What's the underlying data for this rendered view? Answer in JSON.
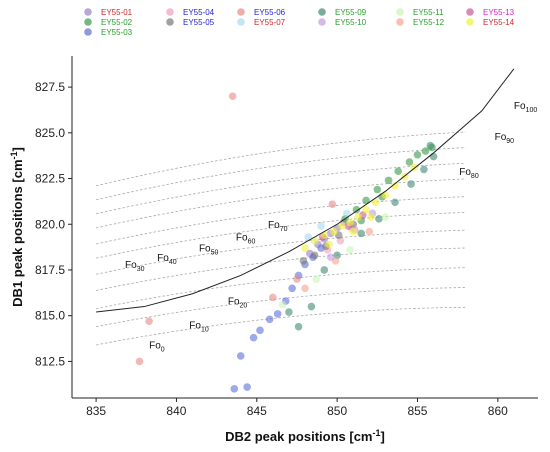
{
  "chart_data": {
    "type": "scatter",
    "xlabel": "DB2 peak positions [cm",
    "xlabel_unit_sup": "-1",
    "xlabel_end": "]",
    "ylabel": "DB1 peak positions [cm",
    "ylabel_unit_sup": "-1",
    "ylabel_end": "]",
    "xlim": [
      833.5,
      862.5
    ],
    "ylim": [
      810.5,
      829.2
    ],
    "xticks": [
      835,
      840,
      845,
      850,
      855,
      860
    ],
    "yticks": [
      812.5,
      815.0,
      817.5,
      820.0,
      822.5,
      825.0,
      827.5
    ],
    "ytick_labels": [
      "812.5",
      "815.0",
      "817.5",
      "820.0",
      "822.5",
      "825.0",
      "827.5"
    ],
    "grid": false,
    "legend_position": "top",
    "series": [
      {
        "name": "EY55-01",
        "color": "#9b7fc8",
        "label_color": "#d62728",
        "points": [
          [
            848.3,
            818.4
          ],
          [
            848.8,
            818.9
          ],
          [
            849.2,
            819.2
          ],
          [
            849.6,
            819.5
          ],
          [
            850.0,
            819.8
          ],
          [
            850.4,
            820.1
          ]
        ]
      },
      {
        "name": "EY55-02",
        "color": "#3a9a4a",
        "label_color": "#2ca02c",
        "points": [
          [
            850.5,
            820.3
          ],
          [
            851.2,
            820.8
          ],
          [
            851.8,
            821.3
          ],
          [
            852.5,
            821.9
          ],
          [
            853.2,
            822.4
          ],
          [
            853.8,
            822.9
          ],
          [
            854.5,
            823.4
          ],
          [
            855.0,
            823.8
          ],
          [
            855.5,
            824.0
          ],
          [
            855.9,
            824.2
          ],
          [
            852.8,
            821.5
          ],
          [
            851.5,
            820.2
          ]
        ]
      },
      {
        "name": "EY55-03",
        "color": "#5b6fd8",
        "label_color": "#2ca02c",
        "points": [
          [
            843.6,
            811.0
          ],
          [
            844.4,
            811.1
          ],
          [
            844.0,
            812.8
          ],
          [
            844.8,
            813.8
          ],
          [
            845.2,
            814.2
          ],
          [
            845.8,
            814.8
          ],
          [
            846.3,
            815.1
          ],
          [
            846.8,
            815.8
          ],
          [
            847.2,
            816.5
          ],
          [
            847.6,
            817.2
          ],
          [
            848.0,
            817.8
          ],
          [
            848.5,
            818.2
          ],
          [
            849.0,
            818.7
          ]
        ]
      },
      {
        "name": "EY55-04",
        "color": "#f2a0b8",
        "label_color": "#1f1fd6",
        "points": [
          [
            849.4,
            818.6
          ],
          [
            850.2,
            819.1
          ],
          [
            850.9,
            819.8
          ]
        ]
      },
      {
        "name": "EY55-05",
        "color": "#777777",
        "label_color": "#1f1fd6",
        "points": [
          [
            847.9,
            818.0
          ],
          [
            848.6,
            818.3
          ],
          [
            849.3,
            818.8
          ],
          [
            850.1,
            819.4
          ],
          [
            851.0,
            820.0
          ]
        ]
      },
      {
        "name": "EY55-06",
        "color": "#e88a85",
        "label_color": "#1f1fd6",
        "points": [
          [
            837.7,
            812.5
          ],
          [
            838.3,
            814.7
          ],
          [
            843.5,
            827.0
          ],
          [
            846.0,
            816.0
          ],
          [
            847.5,
            817.0
          ],
          [
            849.7,
            821.1
          ]
        ]
      },
      {
        "name": "EY55-07",
        "color": "#a9d8f0",
        "label_color": "#d62728",
        "points": [
          [
            848.2,
            819.3
          ],
          [
            849.0,
            819.9
          ],
          [
            850.6,
            820.6
          ]
        ]
      },
      {
        "name": "EY55-09",
        "color": "#3f8a74",
        "label_color": "#2ca02c",
        "points": [
          [
            847.0,
            815.2
          ],
          [
            847.6,
            814.4
          ],
          [
            848.4,
            815.5
          ],
          [
            849.2,
            817.5
          ],
          [
            850.0,
            818.3
          ],
          [
            851.5,
            819.5
          ],
          [
            852.6,
            820.3
          ],
          [
            853.6,
            821.2
          ],
          [
            854.6,
            822.2
          ],
          [
            855.4,
            823.0
          ],
          [
            856.0,
            823.7
          ],
          [
            855.8,
            824.3
          ]
        ]
      },
      {
        "name": "EY55-10",
        "color": "#c79be0",
        "label_color": "#2ca02c",
        "points": [
          [
            849.6,
            818.2
          ],
          [
            851.1,
            819.7
          ],
          [
            852.2,
            820.6
          ]
        ]
      },
      {
        "name": "EY55-11",
        "color": "#c8f5b5",
        "label_color": "#2ca02c",
        "points": [
          [
            846.6,
            815.6
          ],
          [
            848.7,
            817.0
          ],
          [
            850.8,
            818.6
          ],
          [
            853.0,
            820.4
          ]
        ]
      },
      {
        "name": "EY55-12",
        "color": "#f4a390",
        "label_color": "#2ca02c",
        "points": [
          [
            848.0,
            816.5
          ],
          [
            849.9,
            818.0
          ],
          [
            852.0,
            819.6
          ]
        ]
      },
      {
        "name": "EY55-13",
        "color": "#c9589a",
        "label_color": "#e020c0",
        "points": [
          [
            849.1,
            819.3
          ],
          [
            850.7,
            819.9
          ],
          [
            851.6,
            820.5
          ]
        ]
      },
      {
        "name": "EY55-14",
        "color": "#f2f23a",
        "label_color": "#d62728",
        "points": [
          [
            848.0,
            818.7
          ],
          [
            848.6,
            819.1
          ],
          [
            849.2,
            819.4
          ],
          [
            849.8,
            819.6
          ],
          [
            850.3,
            819.9
          ],
          [
            850.8,
            820.1
          ],
          [
            851.3,
            820.4
          ],
          [
            851.8,
            820.8
          ],
          [
            852.4,
            821.2
          ],
          [
            853.0,
            821.6
          ],
          [
            853.6,
            822.1
          ],
          [
            854.2,
            822.6
          ],
          [
            854.8,
            823.1
          ],
          [
            851.0,
            819.6
          ],
          [
            852.1,
            820.4
          ],
          [
            849.5,
            818.9
          ]
        ]
      }
    ],
    "fit_curve": [
      [
        835.0,
        815.2
      ],
      [
        838,
        815.5
      ],
      [
        841,
        816.2
      ],
      [
        844,
        817.2
      ],
      [
        847,
        818.5
      ],
      [
        850,
        820.0
      ],
      [
        853,
        821.8
      ],
      [
        856,
        823.9
      ],
      [
        859,
        826.2
      ],
      [
        861,
        828.5
      ]
    ],
    "fo_lines": [
      {
        "base": "Fo",
        "sub": "0",
        "c": -0.0
      },
      {
        "base": "Fo",
        "sub": "10",
        "c": 1.0
      },
      {
        "base": "Fo",
        "sub": "20",
        "c": 2.0
      },
      {
        "base": "Fo",
        "sub": "30",
        "c": 3.0
      },
      {
        "base": "Fo",
        "sub": "40",
        "c": 3.9
      },
      {
        "base": "Fo",
        "sub": "50",
        "c": 4.8
      },
      {
        "base": "Fo",
        "sub": "60",
        "c": 5.6
      },
      {
        "base": "Fo",
        "sub": "70",
        "c": 6.5
      },
      {
        "base": "Fo",
        "sub": "80",
        "c": 7.3
      },
      {
        "base": "Fo",
        "sub": "90",
        "c": 8.1
      },
      {
        "base": "Fo",
        "sub": "100",
        "c": 8.9
      }
    ]
  }
}
